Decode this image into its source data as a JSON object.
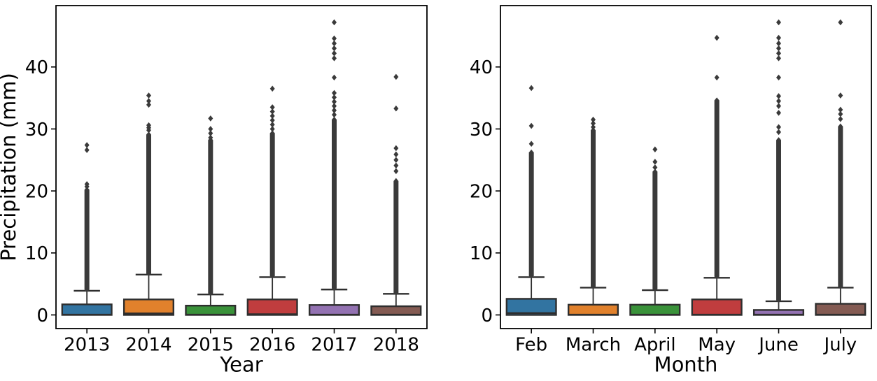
{
  "figure": {
    "background": "#ffffff"
  },
  "style": {
    "box_edge_color": "#2e2e2e",
    "flier_color": "#3a3a3a",
    "spine_color": "#000000",
    "median_color": "#2e2e2e"
  },
  "chart_data": [
    {
      "type": "box",
      "title": "",
      "xlabel": "Year",
      "ylabel": "Precipitation (mm)",
      "categories": [
        "2013",
        "2014",
        "2015",
        "2016",
        "2017",
        "2018"
      ],
      "yticks": [
        0,
        10,
        20,
        30,
        40
      ],
      "ylim": [
        -2.2,
        49.9
      ],
      "grid": false,
      "legend": null,
      "boxes": [
        {
          "category": "2013",
          "color": "#3274a1",
          "q1": 0,
          "median": 0.05,
          "q3": 1.7,
          "whisker_low": 0,
          "whisker_high": 3.9,
          "outlier_dense_range": [
            4.1,
            20.2
          ],
          "outliers": [
            20.7,
            21.1,
            26.6,
            27.4
          ]
        },
        {
          "category": "2014",
          "color": "#e1812c",
          "q1": 0,
          "median": 0.25,
          "q3": 2.5,
          "whisker_low": 0,
          "whisker_high": 6.5,
          "outlier_dense_range": [
            6.7,
            29.1
          ],
          "outliers": [
            29.8,
            30.2,
            30.6,
            33.9,
            34.5,
            35.4
          ]
        },
        {
          "category": "2015",
          "color": "#3a923a",
          "q1": 0,
          "median": 0.05,
          "q3": 1.5,
          "whisker_low": 0,
          "whisker_high": 3.3,
          "outlier_dense_range": [
            3.5,
            28.2
          ],
          "outliers": [
            28.6,
            29.3,
            30,
            31.7
          ]
        },
        {
          "category": "2016",
          "color": "#c03d3e",
          "q1": 0,
          "median": 0.12,
          "q3": 2.5,
          "whisker_low": 0,
          "whisker_high": 6.1,
          "outlier_dense_range": [
            6.3,
            29.3
          ],
          "outliers": [
            30,
            30.7,
            31.4,
            32.1,
            32.8,
            33.5,
            36.5
          ]
        },
        {
          "category": "2017",
          "color": "#9372b2",
          "q1": 0,
          "median": 0.05,
          "q3": 1.6,
          "whisker_low": 0,
          "whisker_high": 4.1,
          "outlier_dense_range": [
            4.3,
            31.5
          ],
          "outliers": [
            32.3,
            33,
            33.7,
            34.4,
            35.1,
            35.8,
            38.3,
            41.4,
            42.2,
            43,
            43.8,
            44.6,
            47.2
          ]
        },
        {
          "category": "2018",
          "color": "#845b53",
          "q1": 0,
          "median": 0.05,
          "q3": 1.4,
          "whisker_low": 0,
          "whisker_high": 3.4,
          "outlier_dense_range": [
            3.6,
            21.6
          ],
          "outliers": [
            23.2,
            24.1,
            25,
            25.9,
            26.9,
            33.3,
            38.4
          ]
        }
      ]
    },
    {
      "type": "box",
      "title": "",
      "xlabel": "Month",
      "ylabel": null,
      "categories": [
        "Feb",
        "March",
        "April",
        "May",
        "June",
        "July"
      ],
      "yticks": [
        0,
        10,
        20,
        30,
        40
      ],
      "ylim": [
        -2.2,
        49.9
      ],
      "grid": false,
      "legend": null,
      "boxes": [
        {
          "category": "Feb",
          "color": "#3274a1",
          "q1": 0,
          "median": 0.3,
          "q3": 2.6,
          "whisker_low": 0,
          "whisker_high": 6.1,
          "outlier_dense_range": [
            6.3,
            26.2
          ],
          "outliers": [
            27.6,
            30.5,
            36.6
          ]
        },
        {
          "category": "March",
          "color": "#e1812c",
          "q1": 0,
          "median": 0.05,
          "q3": 1.65,
          "whisker_low": 0,
          "whisker_high": 4.4,
          "outlier_dense_range": [
            4.6,
            29.8
          ],
          "outliers": [
            30.3,
            30.9,
            31.5
          ]
        },
        {
          "category": "April",
          "color": "#3a923a",
          "q1": 0,
          "median": 0.05,
          "q3": 1.65,
          "whisker_low": 0,
          "whisker_high": 4,
          "outlier_dense_range": [
            4.2,
            23.1
          ],
          "outliers": [
            23.8,
            24.7,
            26.7
          ]
        },
        {
          "category": "May",
          "color": "#c03d3e",
          "q1": 0,
          "median": 0.05,
          "q3": 2.5,
          "whisker_low": 0,
          "whisker_high": 6,
          "outlier_dense_range": [
            6.2,
            34.6
          ],
          "outliers": [
            38.3,
            44.7
          ]
        },
        {
          "category": "June",
          "color": "#9372b2",
          "q1": 0,
          "median": 0.05,
          "q3": 0.8,
          "whisker_low": 0,
          "whisker_high": 2.2,
          "outlier_dense_range": [
            2.4,
            28.2
          ],
          "outliers": [
            29.5,
            30.3,
            32.6,
            33.7,
            34.5,
            35.3,
            38.3,
            41.4,
            42.2,
            43,
            43.8,
            44.7,
            47.2
          ]
        },
        {
          "category": "July",
          "color": "#845b53",
          "q1": 0,
          "median": 0.05,
          "q3": 1.8,
          "whisker_low": 0,
          "whisker_high": 4.4,
          "outlier_dense_range": [
            4.6,
            30.4
          ],
          "outliers": [
            31.6,
            32.4,
            33.1,
            35.4,
            47.2
          ]
        }
      ]
    }
  ]
}
